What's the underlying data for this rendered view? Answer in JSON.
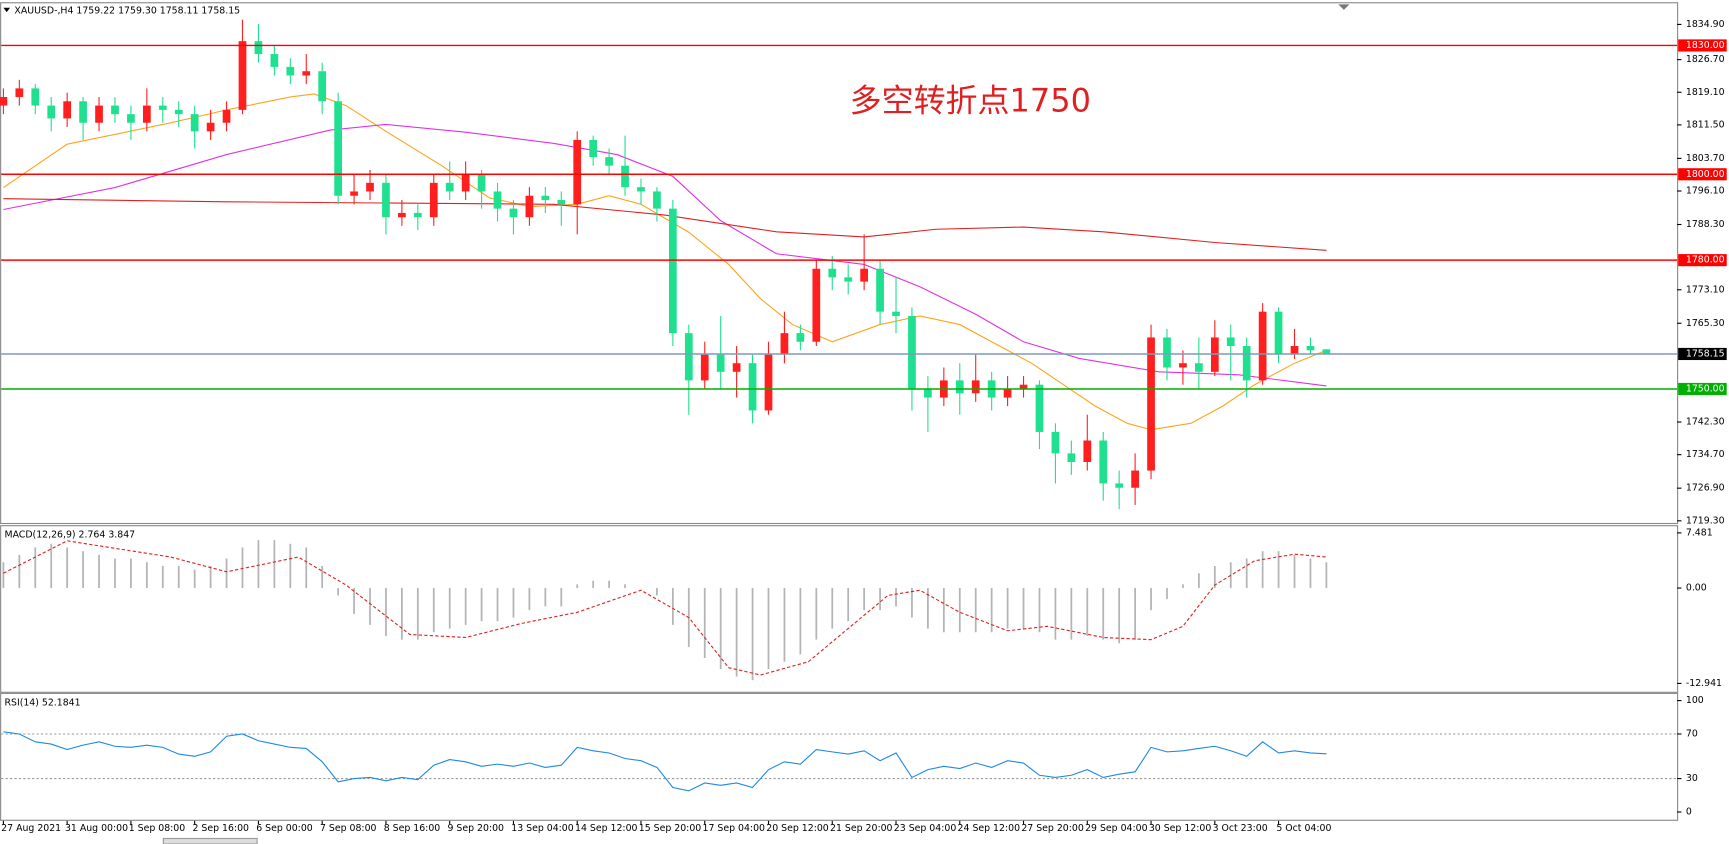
{
  "chart_data": {
    "type": "candlestick",
    "title": "XAUUSD-,H4  1759.22 1759.30 1758.11 1758.15",
    "annotation": "多空转折点1750",
    "up_color": "#ff1f1f",
    "down_color": "#1fe08f",
    "x": [
      0,
      2,
      4,
      6,
      8,
      10,
      12,
      14,
      16,
      18,
      20,
      22,
      24,
      26,
      28,
      30,
      32,
      34,
      36,
      38,
      40,
      42,
      44,
      46,
      48,
      50,
      52,
      54,
      56,
      58,
      60,
      62,
      64,
      66,
      68,
      70,
      72,
      74,
      76,
      78,
      80,
      82,
      84,
      86,
      88,
      90,
      92,
      94,
      96,
      98,
      100,
      102,
      104,
      106,
      108,
      110,
      112,
      114,
      116,
      118,
      120,
      122,
      124,
      126,
      128,
      130,
      132,
      134,
      136,
      138,
      140,
      142,
      144,
      146,
      148,
      150,
      152,
      154,
      156,
      158,
      160,
      162,
      164,
      166
    ],
    "open": [
      1816,
      1818,
      1820,
      1816,
      1813,
      1817,
      1812,
      1816,
      1814,
      1812,
      1816,
      1815,
      1814,
      1810,
      1812,
      1815,
      1831,
      1828,
      1825,
      1823,
      1824,
      1817,
      1795,
      1796,
      1798,
      1790,
      1791,
      1790,
      1798,
      1796,
      1800,
      1796,
      1792,
      1790,
      1795,
      1794,
      1793,
      1808,
      1804,
      1802,
      1797,
      1796,
      1792,
      1763,
      1752,
      1758,
      1754,
      1756,
      1745,
      1758,
      1763,
      1761,
      1778,
      1776,
      1775,
      1778,
      1768,
      1767,
      1750,
      1748,
      1752,
      1749,
      1752,
      1748,
      1750,
      1751,
      1740,
      1735,
      1733,
      1738,
      1728,
      1727,
      1731,
      1762,
      1755,
      1756,
      1754,
      1762,
      1760,
      1752,
      1768,
      1758,
      1760,
      1759.22
    ],
    "high": [
      1820,
      1822,
      1821,
      1818,
      1819,
      1818,
      1818,
      1818,
      1816,
      1820,
      1818,
      1817,
      1816,
      1815,
      1817,
      1836,
      1835,
      1830,
      1827,
      1828,
      1826,
      1819,
      1800,
      1801,
      1800,
      1794,
      1793,
      1800,
      1803,
      1803,
      1801,
      1798,
      1794,
      1797,
      1797,
      1796,
      1810,
      1809,
      1806,
      1809,
      1799,
      1797,
      1794,
      1765,
      1761,
      1767,
      1760,
      1758,
      1761,
      1768,
      1765,
      1780,
      1781,
      1779,
      1786,
      1780,
      1776,
      1769,
      1753,
      1755,
      1756,
      1758,
      1754,
      1753,
      1753,
      1752,
      1742,
      1738,
      1744,
      1740,
      1731,
      1735,
      1765,
      1764,
      1759,
      1762,
      1766,
      1765,
      1762,
      1770,
      1769,
      1764,
      1762,
      1759.3
    ],
    "low": [
      1814,
      1816,
      1814,
      1810,
      1811,
      1808,
      1810,
      1812,
      1808,
      1810,
      1812,
      1811,
      1806,
      1808,
      1810,
      1814,
      1826,
      1823,
      1821,
      1821,
      1814,
      1793,
      1793,
      1794,
      1786,
      1788,
      1787,
      1788,
      1794,
      1794,
      1792,
      1789,
      1786,
      1788,
      1791,
      1788,
      1786,
      1802,
      1800,
      1795,
      1793,
      1789,
      1760,
      1744,
      1750,
      1750,
      1748,
      1742,
      1744,
      1756,
      1759,
      1760,
      1773,
      1772,
      1773,
      1765,
      1763,
      1745,
      1740,
      1746,
      1744,
      1747,
      1745,
      1746,
      1748,
      1736,
      1728,
      1730,
      1731,
      1724,
      1722,
      1723,
      1729,
      1752,
      1751,
      1750,
      1753,
      1752,
      1748,
      1751,
      1756,
      1757,
      1758,
      1758.11
    ],
    "close": [
      1818,
      1820,
      1816,
      1813,
      1817,
      1812,
      1816,
      1814,
      1812,
      1816,
      1815,
      1814,
      1810,
      1812,
      1815,
      1831,
      1828,
      1825,
      1823,
      1824,
      1817,
      1795,
      1796,
      1798,
      1790,
      1791,
      1790,
      1798,
      1796,
      1800,
      1796,
      1792,
      1790,
      1795,
      1794,
      1793,
      1808,
      1804,
      1802,
      1797,
      1796,
      1792,
      1763,
      1752,
      1758,
      1754,
      1756,
      1745,
      1758,
      1763,
      1761,
      1778,
      1776,
      1775,
      1778,
      1768,
      1767,
      1750,
      1748,
      1752,
      1749,
      1752,
      1748,
      1750,
      1751,
      1740,
      1735,
      1733,
      1738,
      1728,
      1727,
      1731,
      1762,
      1755,
      1756,
      1754,
      1762,
      1760,
      1752,
      1768,
      1758,
      1760,
      1759,
      1758.15
    ],
    "xlim": [
      0,
      210
    ],
    "xticks": [
      {
        "value": 0,
        "label": "27 Aug 2021"
      },
      {
        "value": 8,
        "label": "31 Aug 00:00"
      },
      {
        "value": 16,
        "label": "1 Sep 08:00"
      },
      {
        "value": 24,
        "label": "2 Sep 16:00"
      },
      {
        "value": 32,
        "label": "6 Sep 00:00"
      },
      {
        "value": 40,
        "label": "7 Sep 08:00"
      },
      {
        "value": 48,
        "label": "8 Sep 16:00"
      },
      {
        "value": 56,
        "label": "9 Sep 20:00"
      },
      {
        "value": 64,
        "label": "13 Sep 04:00"
      },
      {
        "value": 72,
        "label": "14 Sep 12:00"
      },
      {
        "value": 80,
        "label": "15 Sep 20:00"
      },
      {
        "value": 88,
        "label": "17 Sep 04:00"
      },
      {
        "value": 96,
        "label": "20 Sep 12:00"
      },
      {
        "value": 104,
        "label": "21 Sep 20:00"
      },
      {
        "value": 112,
        "label": "23 Sep 04:00"
      },
      {
        "value": 120,
        "label": "24 Sep 12:00"
      },
      {
        "value": 128,
        "label": "27 Sep 20:00"
      },
      {
        "value": 136,
        "label": "29 Sep 04:00"
      },
      {
        "value": 144,
        "label": "30 Sep 12:00"
      },
      {
        "value": 152,
        "label": "3 Oct 23:00"
      },
      {
        "value": 160,
        "label": "5 Oct 04:00"
      }
    ],
    "ylim": [
      1718.8,
      1839.3
    ],
    "yticks": [
      {
        "value": 1834.9,
        "label": "1834.90"
      },
      {
        "value": 1826.7,
        "label": "1826.70"
      },
      {
        "value": 1819.1,
        "label": "1819.10"
      },
      {
        "value": 1811.5,
        "label": "1811.50"
      },
      {
        "value": 1803.7,
        "label": "1803.70"
      },
      {
        "value": 1796.1,
        "label": "1796.10"
      },
      {
        "value": 1788.3,
        "label": "1788.30"
      },
      {
        "value": 1773.1,
        "label": "1773.10"
      },
      {
        "value": 1765.3,
        "label": "1765.30"
      },
      {
        "value": 1742.3,
        "label": "1742.30"
      },
      {
        "value": 1734.7,
        "label": "1734.70"
      },
      {
        "value": 1726.9,
        "label": "1726.90"
      },
      {
        "value": 1719.3,
        "label": "1719.30"
      }
    ],
    "levels": [
      {
        "value": 1830,
        "label": "1830.00",
        "color": "#ff0000"
      },
      {
        "value": 1800,
        "label": "1800.00",
        "color": "#ff0000"
      },
      {
        "value": 1780,
        "label": "1780.00",
        "color": "#ff0000"
      },
      {
        "value": 1758.15,
        "label": "1758.15",
        "color": "#7d9cc0"
      },
      {
        "value": 1750,
        "label": "1750.00",
        "color": "#00b000"
      }
    ],
    "overlays": [
      {
        "color": "#ffa31a",
        "x": [
          0,
          8,
          21,
          28,
          36,
          39,
          43,
          48,
          55,
          61,
          66,
          72,
          76,
          80,
          86,
          91,
          95,
          99,
          104,
          110,
          115,
          120,
          124,
          129,
          133,
          137,
          141,
          144,
          149,
          153,
          157,
          162,
          166
        ],
        "values": [
          1796.9,
          1807,
          1812,
          1815,
          1818,
          1818.7,
          1816,
          1810,
          1802,
          1794.5,
          1792.5,
          1793,
          1795,
          1793,
          1786.5,
          1779,
          1771,
          1765,
          1761,
          1765,
          1767,
          1765,
          1761,
          1756,
          1751,
          1746,
          1742,
          1740.5,
          1742,
          1746,
          1751,
          1756,
          1759
        ]
      },
      {
        "color": "#e033e0",
        "x": [
          0,
          14,
          28,
          41,
          48,
          58,
          69,
          77,
          84,
          90,
          97,
          108,
          115,
          122,
          128,
          135,
          145,
          155,
          166
        ],
        "values": [
          1791.8,
          1796.9,
          1804.6,
          1810.3,
          1811.6,
          1809.8,
          1807.2,
          1804.6,
          1799.5,
          1789.2,
          1781.5,
          1779,
          1773.8,
          1767.4,
          1761,
          1757.1,
          1754,
          1753.3,
          1750.7
        ]
      },
      {
        "color": "#e02020",
        "x": [
          0,
          28,
          69,
          83,
          97,
          108,
          117,
          128,
          138,
          152,
          166
        ],
        "values": [
          1794.3,
          1793.6,
          1793,
          1790.5,
          1786.6,
          1785.4,
          1787.2,
          1787.7,
          1786.6,
          1784.1,
          1782.3
        ]
      }
    ],
    "indicators": [
      {
        "type": "macd",
        "title": "MACD(12,26,9) 2.764 3.847",
        "ylim": [
          -14.07,
          8.38
        ],
        "yticks": [
          7.481,
          {
            "value": 0,
            "label": "0.00"
          },
          -12.941
        ],
        "histogram_color": "#b4b4b4",
        "histogram": [
          3.5,
          4.5,
          5.5,
          6,
          5.5,
          5,
          4.5,
          4,
          4,
          3.5,
          3,
          3,
          2.5,
          3,
          4,
          5.5,
          6.5,
          6.5,
          6,
          5.5,
          3,
          -1,
          -3.5,
          -5,
          -6.5,
          -7,
          -7,
          -6,
          -5.5,
          -5,
          -4.5,
          -4.5,
          -4,
          -3,
          -2.5,
          -2.5,
          0.5,
          1,
          1,
          0.5,
          0,
          -1,
          -5,
          -8,
          -9.5,
          -11,
          -12,
          -12.5,
          -11,
          -10,
          -9,
          -7,
          -5.5,
          -4.5,
          -3,
          -3,
          -2.5,
          -4,
          -5.5,
          -6,
          -6,
          -6,
          -6,
          -5.5,
          -5.5,
          -6,
          -7,
          -7,
          -6.5,
          -7,
          -7.5,
          -7,
          -3,
          -1.5,
          0.5,
          2,
          3,
          3.5,
          4,
          5,
          5,
          4.5,
          4,
          3.5
        ],
        "signal": {
          "color": "#e02020",
          "x": [
            0,
            8,
            21,
            28,
            37,
            43,
            51,
            58,
            65,
            72,
            80,
            86,
            91,
            95,
            101,
            106,
            111,
            115,
            120,
            126,
            131,
            138,
            144,
            148,
            152,
            157,
            162,
            166
          ],
          "values": [
            2,
            6.4,
            4.2,
            2.2,
            4.2,
            0.4,
            -6.3,
            -6.7,
            -4.8,
            -3.3,
            -0.3,
            -4,
            -10.8,
            -11.8,
            -10,
            -5.5,
            -1,
            -0.3,
            -3.3,
            -5.8,
            -5.2,
            -6.7,
            -7,
            -5.2,
            0.4,
            3.7,
            4.6,
            4.2
          ]
        }
      },
      {
        "type": "rsi",
        "title": "RSI(14) 52.1841",
        "ylim": [
          0,
          100
        ],
        "yticks": [
          100,
          70,
          30,
          0
        ],
        "levels": [
          70,
          30
        ],
        "color": "#1e88e5",
        "values": [
          72,
          70,
          63,
          61,
          56,
          60,
          63,
          59,
          58,
          60,
          58,
          52,
          50,
          54,
          68,
          70,
          64,
          61,
          58,
          57,
          45,
          27,
          30,
          31,
          28,
          31,
          29,
          42,
          47,
          45,
          41,
          43,
          41,
          44,
          40,
          42,
          58,
          55,
          53,
          48,
          46,
          40,
          22,
          19,
          26,
          24,
          26,
          22,
          38,
          45,
          43,
          56,
          54,
          52,
          55,
          46,
          53,
          31,
          38,
          41,
          39,
          44,
          40,
          46,
          44,
          33,
          31,
          33,
          38,
          31,
          34,
          36,
          58,
          54,
          55,
          57,
          59,
          55,
          50,
          63,
          53,
          55,
          53,
          52.1841
        ]
      }
    ]
  }
}
